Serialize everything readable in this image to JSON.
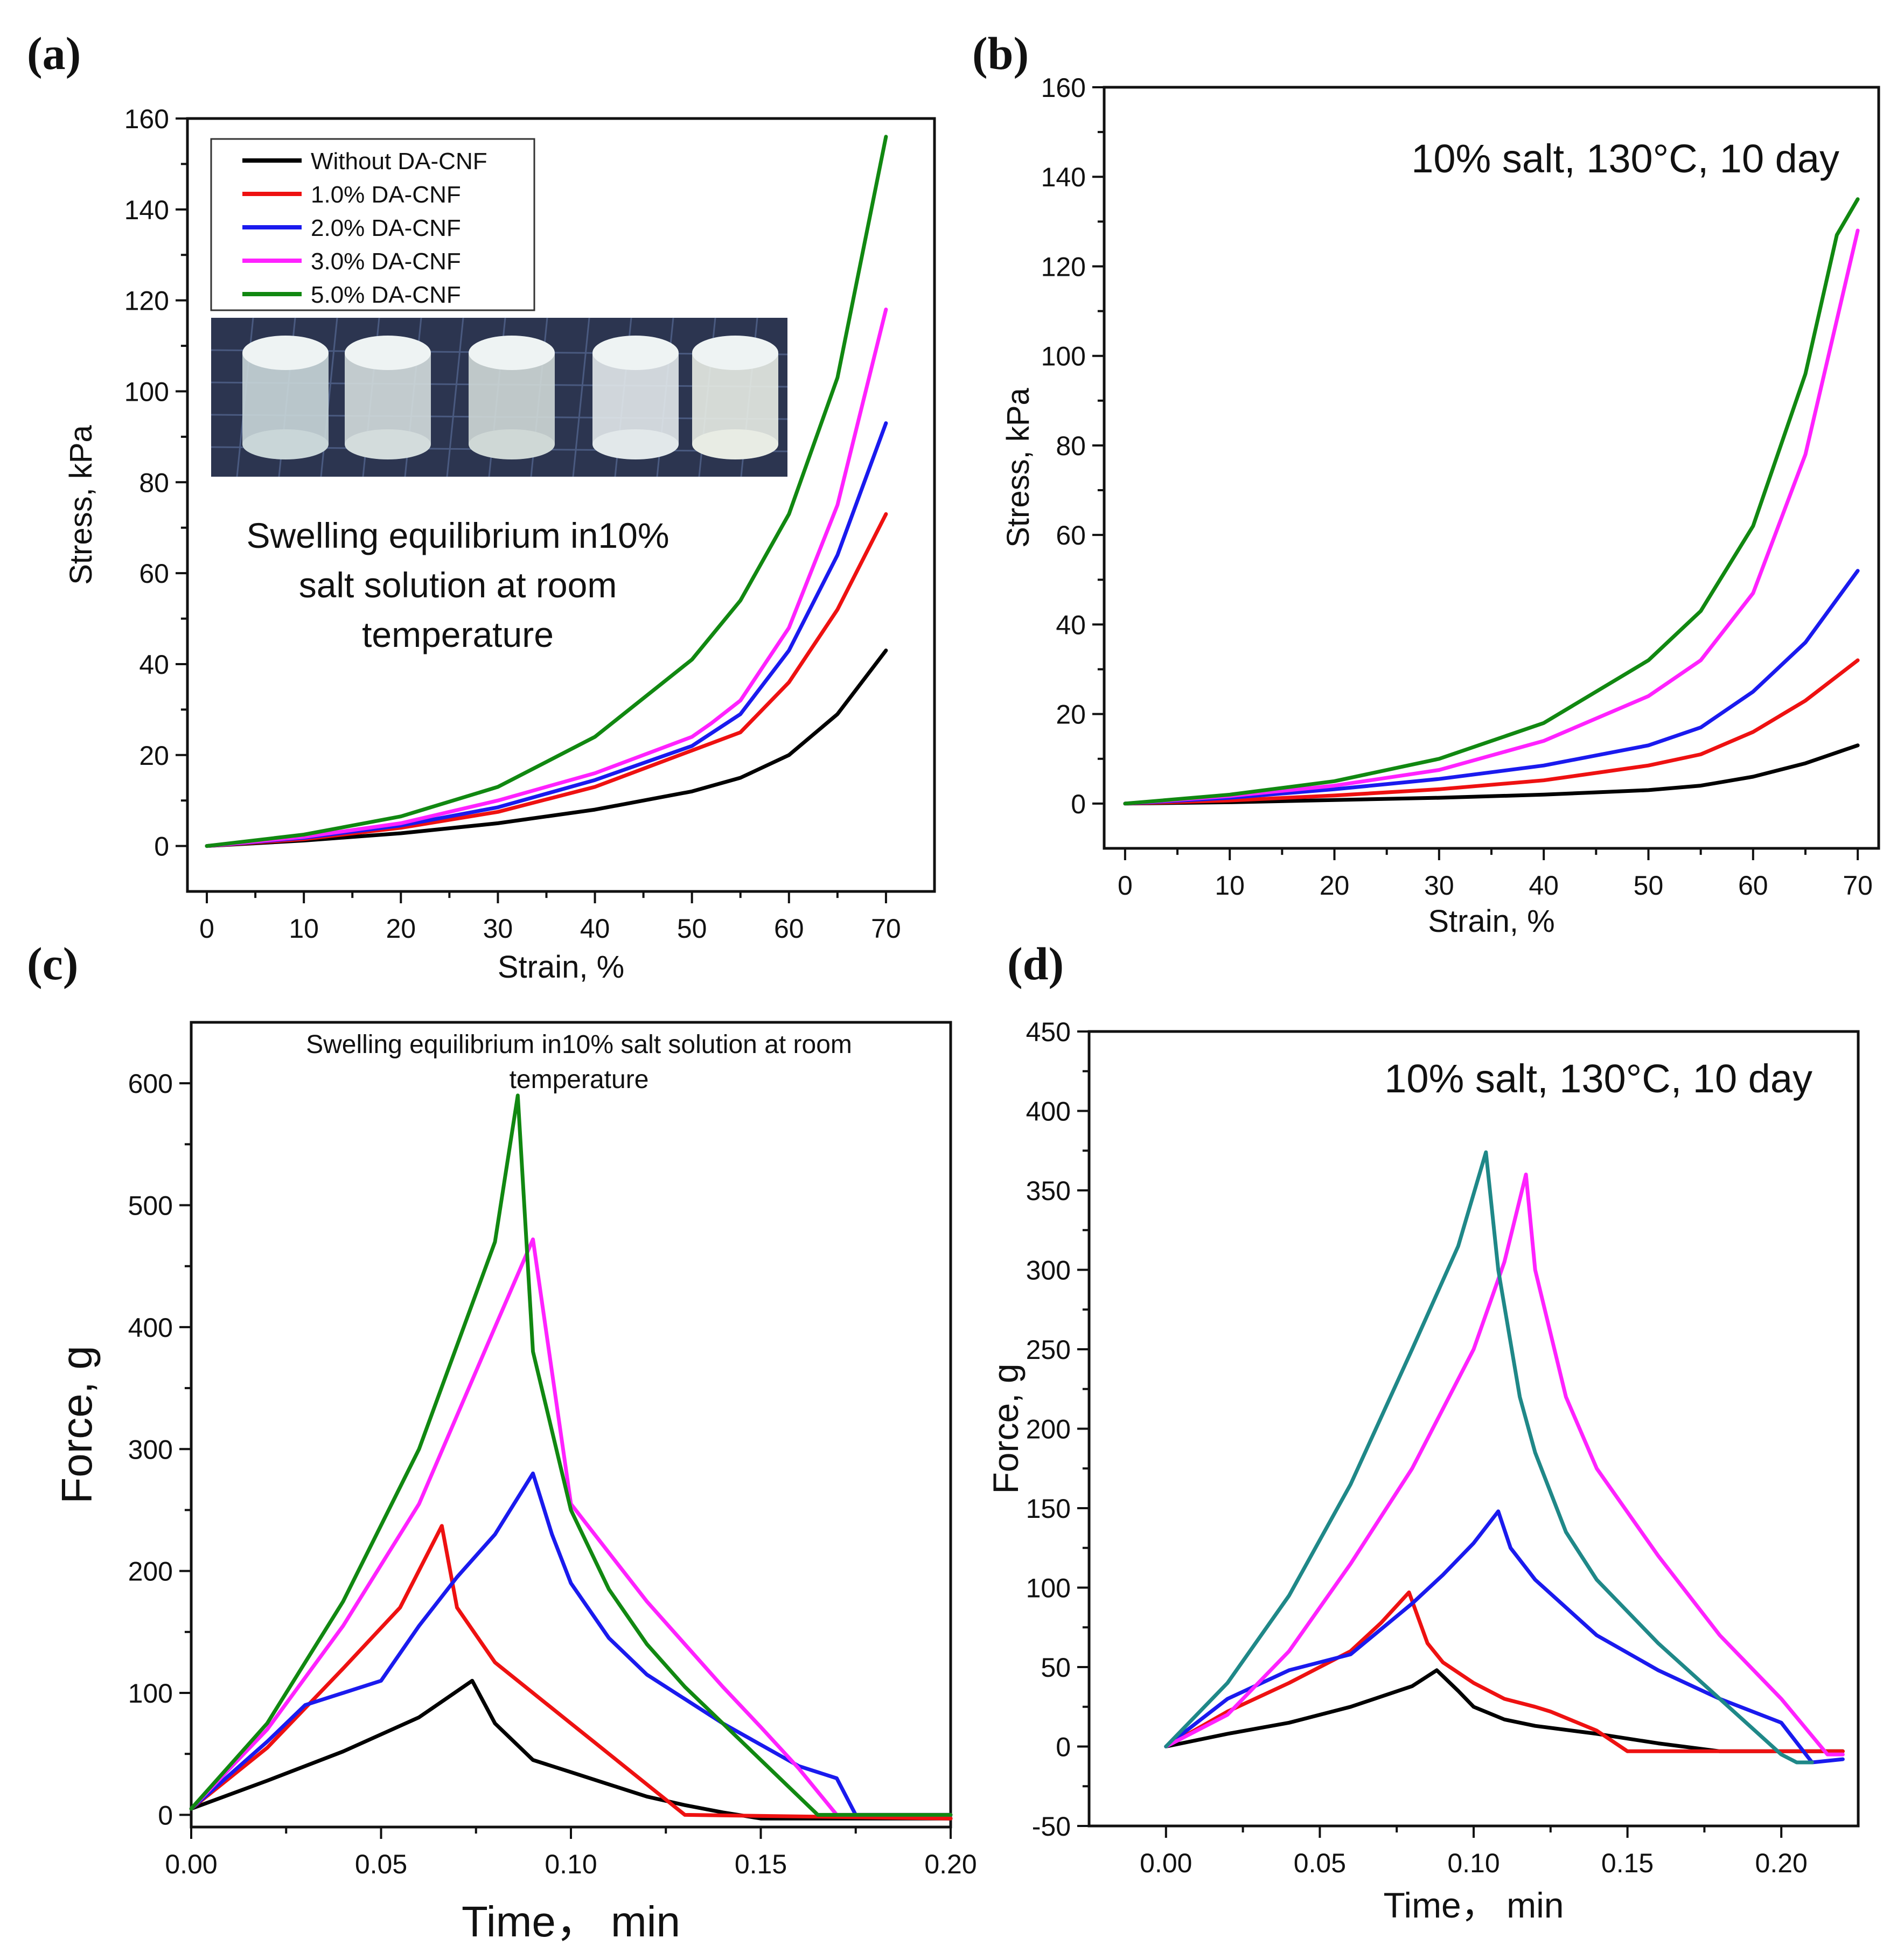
{
  "figure": {
    "panel_labels": [
      "(a)",
      "(b)",
      "(c)",
      "(d)"
    ]
  },
  "chart_data": [
    {
      "id": "a",
      "type": "line",
      "title": "",
      "xlabel": "Strain, %",
      "ylabel": "Stress, kPa",
      "xlim": [
        -2,
        75
      ],
      "ylim": [
        -10,
        160
      ],
      "xticks": [
        0,
        10,
        20,
        30,
        40,
        50,
        60,
        70
      ],
      "yticks": [
        0,
        20,
        40,
        60,
        80,
        100,
        120,
        140,
        160
      ],
      "legend_position": "top-left",
      "annotation": [
        "Swelling equilibrium in10%",
        "salt solution at room",
        "temperature"
      ],
      "inset_photo": "photo of five cylindrical hydrogel samples",
      "grid": false,
      "series": [
        {
          "name": "Without DA-CNF",
          "color": "#000000",
          "x": [
            0,
            10,
            20,
            30,
            40,
            50,
            55,
            60,
            65,
            70
          ],
          "y": [
            0,
            1.2,
            2.8,
            5,
            8,
            12,
            15,
            20,
            29,
            43
          ]
        },
        {
          "name": "1.0% DA-CNF",
          "color": "#ee1111",
          "x": [
            0,
            10,
            20,
            30,
            40,
            50,
            55,
            60,
            65,
            70
          ],
          "y": [
            0,
            1.5,
            4,
            7.5,
            13,
            21,
            25,
            36,
            52,
            73
          ]
        },
        {
          "name": "2.0% DA-CNF",
          "color": "#1a1aee",
          "x": [
            0,
            10,
            20,
            30,
            40,
            50,
            55,
            60,
            65,
            70
          ],
          "y": [
            0,
            1.8,
            4.5,
            8.5,
            14.5,
            22,
            29,
            43,
            64,
            93
          ]
        },
        {
          "name": "3.0% DA-CNF",
          "color": "#ff22ff",
          "x": [
            0,
            10,
            20,
            30,
            40,
            50,
            52,
            55,
            60,
            65,
            70
          ],
          "y": [
            0,
            2,
            5,
            10,
            16,
            24,
            27,
            32,
            48,
            75,
            118
          ]
        },
        {
          "name": "5.0% DA-CNF",
          "color": "#118811",
          "x": [
            0,
            10,
            20,
            30,
            40,
            50,
            55,
            60,
            65,
            70
          ],
          "y": [
            0,
            2.5,
            6.5,
            13,
            24,
            41,
            54,
            73,
            103,
            156
          ]
        }
      ]
    },
    {
      "id": "b",
      "type": "line",
      "title": "",
      "xlabel": "Strain, %",
      "ylabel": "Stress, kPa",
      "xlim": [
        -2,
        72
      ],
      "ylim": [
        -10,
        160
      ],
      "xticks": [
        0,
        10,
        20,
        30,
        40,
        50,
        60,
        70
      ],
      "yticks": [
        0,
        20,
        40,
        60,
        80,
        100,
        120,
        140,
        160
      ],
      "annotation": "10% salt, 130°C, 10 day",
      "grid": false,
      "series": [
        {
          "color": "#000000",
          "x": [
            0,
            10,
            20,
            30,
            40,
            50,
            55,
            60,
            65,
            70
          ],
          "y": [
            0,
            0.3,
            0.8,
            1.3,
            2,
            3,
            4,
            6,
            9,
            13
          ]
        },
        {
          "color": "#ee1111",
          "x": [
            0,
            10,
            20,
            30,
            40,
            50,
            55,
            60,
            65,
            70
          ],
          "y": [
            0,
            0.7,
            1.8,
            3.2,
            5.2,
            8.5,
            11,
            16,
            23,
            32
          ]
        },
        {
          "color": "#1a1aee",
          "x": [
            0,
            10,
            20,
            30,
            40,
            50,
            55,
            60,
            65,
            70
          ],
          "y": [
            0,
            1.3,
            3.2,
            5.5,
            8.5,
            13,
            17,
            25,
            36,
            52
          ]
        },
        {
          "color": "#ff22ff",
          "x": [
            0,
            10,
            20,
            30,
            40,
            50,
            55,
            60,
            65,
            70
          ],
          "y": [
            0,
            1.7,
            4,
            7.5,
            14,
            24,
            32,
            47,
            78,
            128
          ]
        },
        {
          "color": "#118811",
          "x": [
            0,
            10,
            20,
            30,
            40,
            50,
            55,
            60,
            65,
            68,
            70
          ],
          "y": [
            0,
            2,
            5,
            10,
            18,
            32,
            43,
            62,
            96,
            127,
            135
          ]
        }
      ]
    },
    {
      "id": "c",
      "type": "line",
      "title": "",
      "xlabel": "Time， min",
      "ylabel": "Force, g",
      "xlim": [
        0,
        0.2
      ],
      "ylim": [
        -10,
        650
      ],
      "xticks": [
        0.0,
        0.05,
        0.1,
        0.15,
        0.2
      ],
      "xtick_labels": [
        "0.00",
        "0.05",
        "0.10",
        "0.15",
        "0.20"
      ],
      "yticks": [
        0,
        100,
        200,
        300,
        400,
        500,
        600
      ],
      "annotation": [
        "Swelling equilibrium in10% salt solution at room",
        "temperature"
      ],
      "grid": false,
      "series": [
        {
          "color": "#000000",
          "x": [
            0,
            0.02,
            0.04,
            0.06,
            0.074,
            0.08,
            0.09,
            0.1,
            0.11,
            0.12,
            0.13,
            0.14,
            0.15,
            0.2
          ],
          "y": [
            5,
            28,
            52,
            80,
            110,
            75,
            45,
            35,
            25,
            15,
            8,
            2,
            -3,
            -3
          ]
        },
        {
          "color": "#ee1111",
          "x": [
            0,
            0.02,
            0.04,
            0.055,
            0.066,
            0.07,
            0.08,
            0.09,
            0.1,
            0.106,
            0.11,
            0.12,
            0.13,
            0.2
          ],
          "y": [
            5,
            55,
            120,
            170,
            237,
            170,
            125,
            100,
            75,
            60,
            50,
            25,
            0,
            -3
          ]
        },
        {
          "color": "#1a1aee",
          "x": [
            0,
            0.02,
            0.03,
            0.05,
            0.06,
            0.07,
            0.08,
            0.09,
            0.095,
            0.1,
            0.11,
            0.12,
            0.14,
            0.16,
            0.17,
            0.175,
            0.2
          ],
          "y": [
            5,
            60,
            90,
            110,
            155,
            195,
            230,
            280,
            230,
            190,
            145,
            115,
            75,
            40,
            30,
            0,
            0
          ]
        },
        {
          "color": "#ff22ff",
          "x": [
            0,
            0.02,
            0.04,
            0.06,
            0.08,
            0.09,
            0.1,
            0.11,
            0.12,
            0.13,
            0.14,
            0.15,
            0.16,
            0.17,
            0.18,
            0.2
          ],
          "y": [
            5,
            70,
            155,
            255,
            400,
            472,
            255,
            215,
            175,
            140,
            105,
            72,
            38,
            0,
            0,
            0
          ]
        },
        {
          "color": "#118811",
          "x": [
            0,
            0.02,
            0.04,
            0.06,
            0.08,
            0.086,
            0.09,
            0.1,
            0.11,
            0.12,
            0.13,
            0.14,
            0.15,
            0.16,
            0.165,
            0.2
          ],
          "y": [
            5,
            75,
            175,
            300,
            470,
            590,
            380,
            250,
            185,
            140,
            105,
            75,
            45,
            15,
            0,
            0
          ]
        }
      ]
    },
    {
      "id": "d",
      "type": "line",
      "title": "",
      "xlabel": "Time， min",
      "ylabel": "Force, g",
      "xlim": [
        -0.025,
        0.225
      ],
      "ylim": [
        -50,
        450
      ],
      "xticks": [
        0.0,
        0.05,
        0.1,
        0.15,
        0.2
      ],
      "xtick_labels": [
        "0.00",
        "0.05",
        "0.10",
        "0.15",
        "0.20"
      ],
      "yticks": [
        -50,
        0,
        50,
        100,
        150,
        200,
        250,
        300,
        350,
        400,
        450
      ],
      "annotation": "10% salt, 130°C, 10 day",
      "grid": false,
      "series": [
        {
          "color": "#000000",
          "x": [
            0,
            0.02,
            0.04,
            0.06,
            0.08,
            0.088,
            0.095,
            0.1,
            0.11,
            0.12,
            0.14,
            0.16,
            0.18,
            0.22
          ],
          "y": [
            0,
            8,
            15,
            25,
            38,
            48,
            35,
            25,
            17,
            13,
            8,
            2,
            -3,
            -3
          ]
        },
        {
          "color": "#ee1111",
          "x": [
            0,
            0.02,
            0.04,
            0.06,
            0.07,
            0.079,
            0.085,
            0.09,
            0.1,
            0.11,
            0.12,
            0.125,
            0.13,
            0.14,
            0.15,
            0.22
          ],
          "y": [
            0,
            22,
            40,
            60,
            78,
            97,
            65,
            53,
            40,
            30,
            25,
            22,
            18,
            10,
            -3,
            -3
          ]
        },
        {
          "color": "#1a1aee",
          "x": [
            0,
            0.02,
            0.04,
            0.06,
            0.08,
            0.09,
            0.1,
            0.108,
            0.112,
            0.12,
            0.14,
            0.16,
            0.18,
            0.2,
            0.21,
            0.22
          ],
          "y": [
            0,
            30,
            48,
            58,
            90,
            108,
            128,
            148,
            125,
            105,
            70,
            48,
            30,
            15,
            -10,
            -8
          ]
        },
        {
          "color": "#ff22ff",
          "x": [
            0,
            0.02,
            0.04,
            0.06,
            0.08,
            0.1,
            0.11,
            0.117,
            0.12,
            0.13,
            0.14,
            0.16,
            0.18,
            0.2,
            0.215,
            0.22
          ],
          "y": [
            0,
            20,
            60,
            115,
            175,
            250,
            305,
            360,
            300,
            220,
            175,
            120,
            70,
            30,
            -5,
            -5
          ]
        },
        {
          "color": "#1f8888",
          "x": [
            0,
            0.02,
            0.04,
            0.06,
            0.08,
            0.095,
            0.104,
            0.108,
            0.115,
            0.12,
            0.13,
            0.14,
            0.16,
            0.18,
            0.2,
            0.205,
            0.21
          ],
          "y": [
            0,
            40,
            95,
            165,
            250,
            315,
            374,
            300,
            220,
            185,
            135,
            105,
            65,
            30,
            -5,
            -10,
            -10
          ]
        }
      ]
    }
  ]
}
